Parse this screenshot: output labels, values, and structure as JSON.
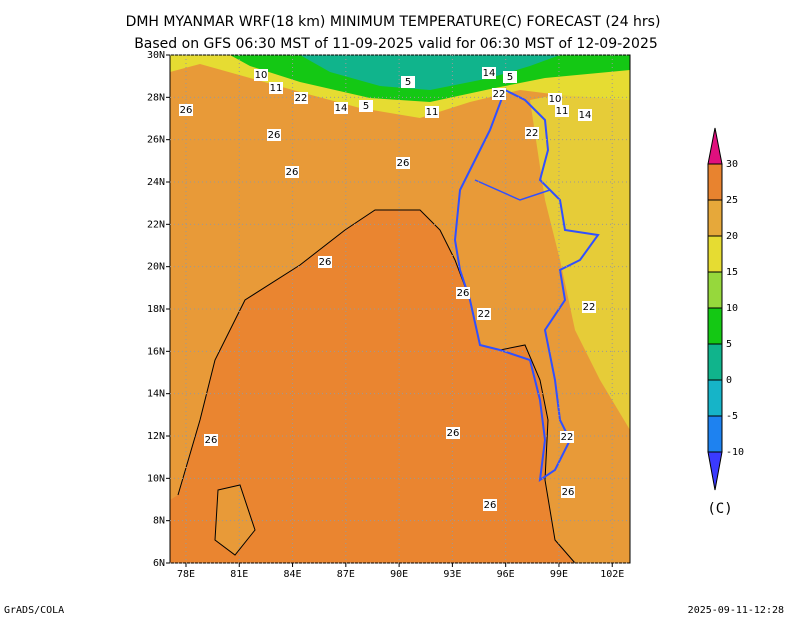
{
  "header": {
    "title": "DMH MYANMAR WRF(18 km) MINIMUM TEMPERATURE(C) FORECAST (24 hrs)",
    "subtitle": "Based on GFS 06:30 MST of 11-09-2025 valid for 06:30 MST of 12-09-2025"
  },
  "map": {
    "xlim": [
      77.1,
      103.0
    ],
    "ylim": [
      6,
      30
    ],
    "xticks": [
      {
        "value": 78,
        "label": "78E"
      },
      {
        "value": 81,
        "label": "81E"
      },
      {
        "value": 84,
        "label": "84E"
      },
      {
        "value": 87,
        "label": "87E"
      },
      {
        "value": 90,
        "label": "90E"
      },
      {
        "value": 93,
        "label": "93E"
      },
      {
        "value": 96,
        "label": "96E"
      },
      {
        "value": 99,
        "label": "99E"
      },
      {
        "value": 102,
        "label": "102E"
      }
    ],
    "yticks": [
      {
        "value": 6,
        "label": "6N"
      },
      {
        "value": 8,
        "label": "8N"
      },
      {
        "value": 10,
        "label": "10N"
      },
      {
        "value": 12,
        "label": "12N"
      },
      {
        "value": 14,
        "label": "14N"
      },
      {
        "value": 16,
        "label": "16N"
      },
      {
        "value": 18,
        "label": "18N"
      },
      {
        "value": 20,
        "label": "20N"
      },
      {
        "value": 22,
        "label": "22N"
      },
      {
        "value": 24,
        "label": "24N"
      },
      {
        "value": 26,
        "label": "26N"
      },
      {
        "value": 28,
        "label": "28N"
      },
      {
        "value": 30,
        "label": "30N"
      }
    ],
    "contour_labels": [
      "10",
      "11",
      "22",
      "14",
      "5",
      "5",
      "11",
      "14",
      "5",
      "22",
      "10",
      "11",
      "14",
      "22",
      "26",
      "26",
      "26",
      "26",
      "26",
      "26",
      "22",
      "22",
      "26",
      "26",
      "22",
      "26",
      "26"
    ]
  },
  "colorbar": {
    "levels": [
      -10,
      -5,
      0,
      5,
      10,
      15,
      20,
      25,
      30
    ],
    "colors": [
      "#3a3aff",
      "#1e82f0",
      "#16b4c8",
      "#10b48c",
      "#14c814",
      "#96d83c",
      "#e6dc32",
      "#e6a83a",
      "#e8832f",
      "#e0107e"
    ],
    "unit": "(C)"
  },
  "footer": {
    "left": "GrADS/COLA",
    "right": "2025-09-11-12:28"
  }
}
